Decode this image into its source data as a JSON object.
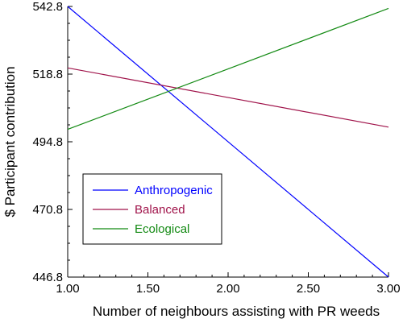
{
  "chart_data": {
    "type": "line",
    "title": "",
    "xlabel": "Number of neighbours assisting with PR weeds",
    "ylabel": "$ Participant contribution",
    "x": [
      1.0,
      3.0
    ],
    "xlim": [
      1.0,
      3.0
    ],
    "ylim": [
      446.8,
      542.8
    ],
    "xticks": [
      1.0,
      1.5,
      2.0,
      2.5,
      3.0
    ],
    "xtick_labels": [
      "1.00",
      "1.50",
      "2.00",
      "2.50",
      "3.00"
    ],
    "yticks": [
      446.8,
      470.8,
      494.8,
      518.8,
      542.8
    ],
    "ytick_labels": [
      "446.8",
      "470.8",
      "494.8",
      "518.8",
      "542.8"
    ],
    "grid": false,
    "legend_position": "lower-left",
    "series": [
      {
        "name": "Anthropogenic",
        "color": "#0000ff",
        "values": [
          542.8,
          446.8
        ]
      },
      {
        "name": "Balanced",
        "color": "#a0134a",
        "values": [
          521.0,
          500.0
        ]
      },
      {
        "name": "Ecological",
        "color": "#138a13",
        "values": [
          499.2,
          542.1
        ]
      }
    ]
  }
}
